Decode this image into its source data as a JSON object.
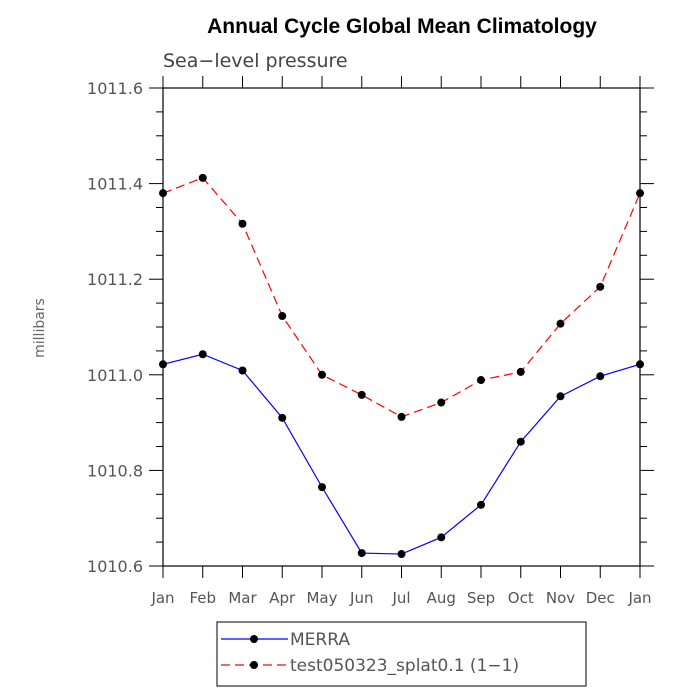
{
  "chart_data": {
    "type": "line",
    "title": "Annual Cycle Global Mean Climatology",
    "subtitle": "Sea−level pressure",
    "xlabel": "",
    "ylabel": "millibars",
    "categories": [
      "Jan",
      "Feb",
      "Mar",
      "Apr",
      "May",
      "Jun",
      "Jul",
      "Aug",
      "Sep",
      "Oct",
      "Nov",
      "Dec",
      "Jan"
    ],
    "ylim": [
      1010.6,
      1011.6
    ],
    "yticks": [
      "1010.6",
      "1010.8",
      "1011.0",
      "1011.2",
      "1011.4",
      "1011.6"
    ],
    "legend_position": "bottom",
    "series": [
      {
        "name": "MERRA",
        "color": "#0000ff",
        "dash": "solid",
        "values": [
          1011.022,
          1011.043,
          1011.009,
          1010.91,
          1010.765,
          1010.627,
          1010.625,
          1010.66,
          1010.728,
          1010.86,
          1010.955,
          1010.997,
          1011.022
        ]
      },
      {
        "name": "test050323_splat0.1 (1−1)",
        "color": "#ff0000",
        "dash": "dashed",
        "values": [
          1011.38,
          1011.412,
          1011.316,
          1011.123,
          1011.0,
          1010.958,
          1010.912,
          1010.942,
          1010.989,
          1011.006,
          1011.107,
          1011.184,
          1011.38
        ]
      }
    ]
  }
}
